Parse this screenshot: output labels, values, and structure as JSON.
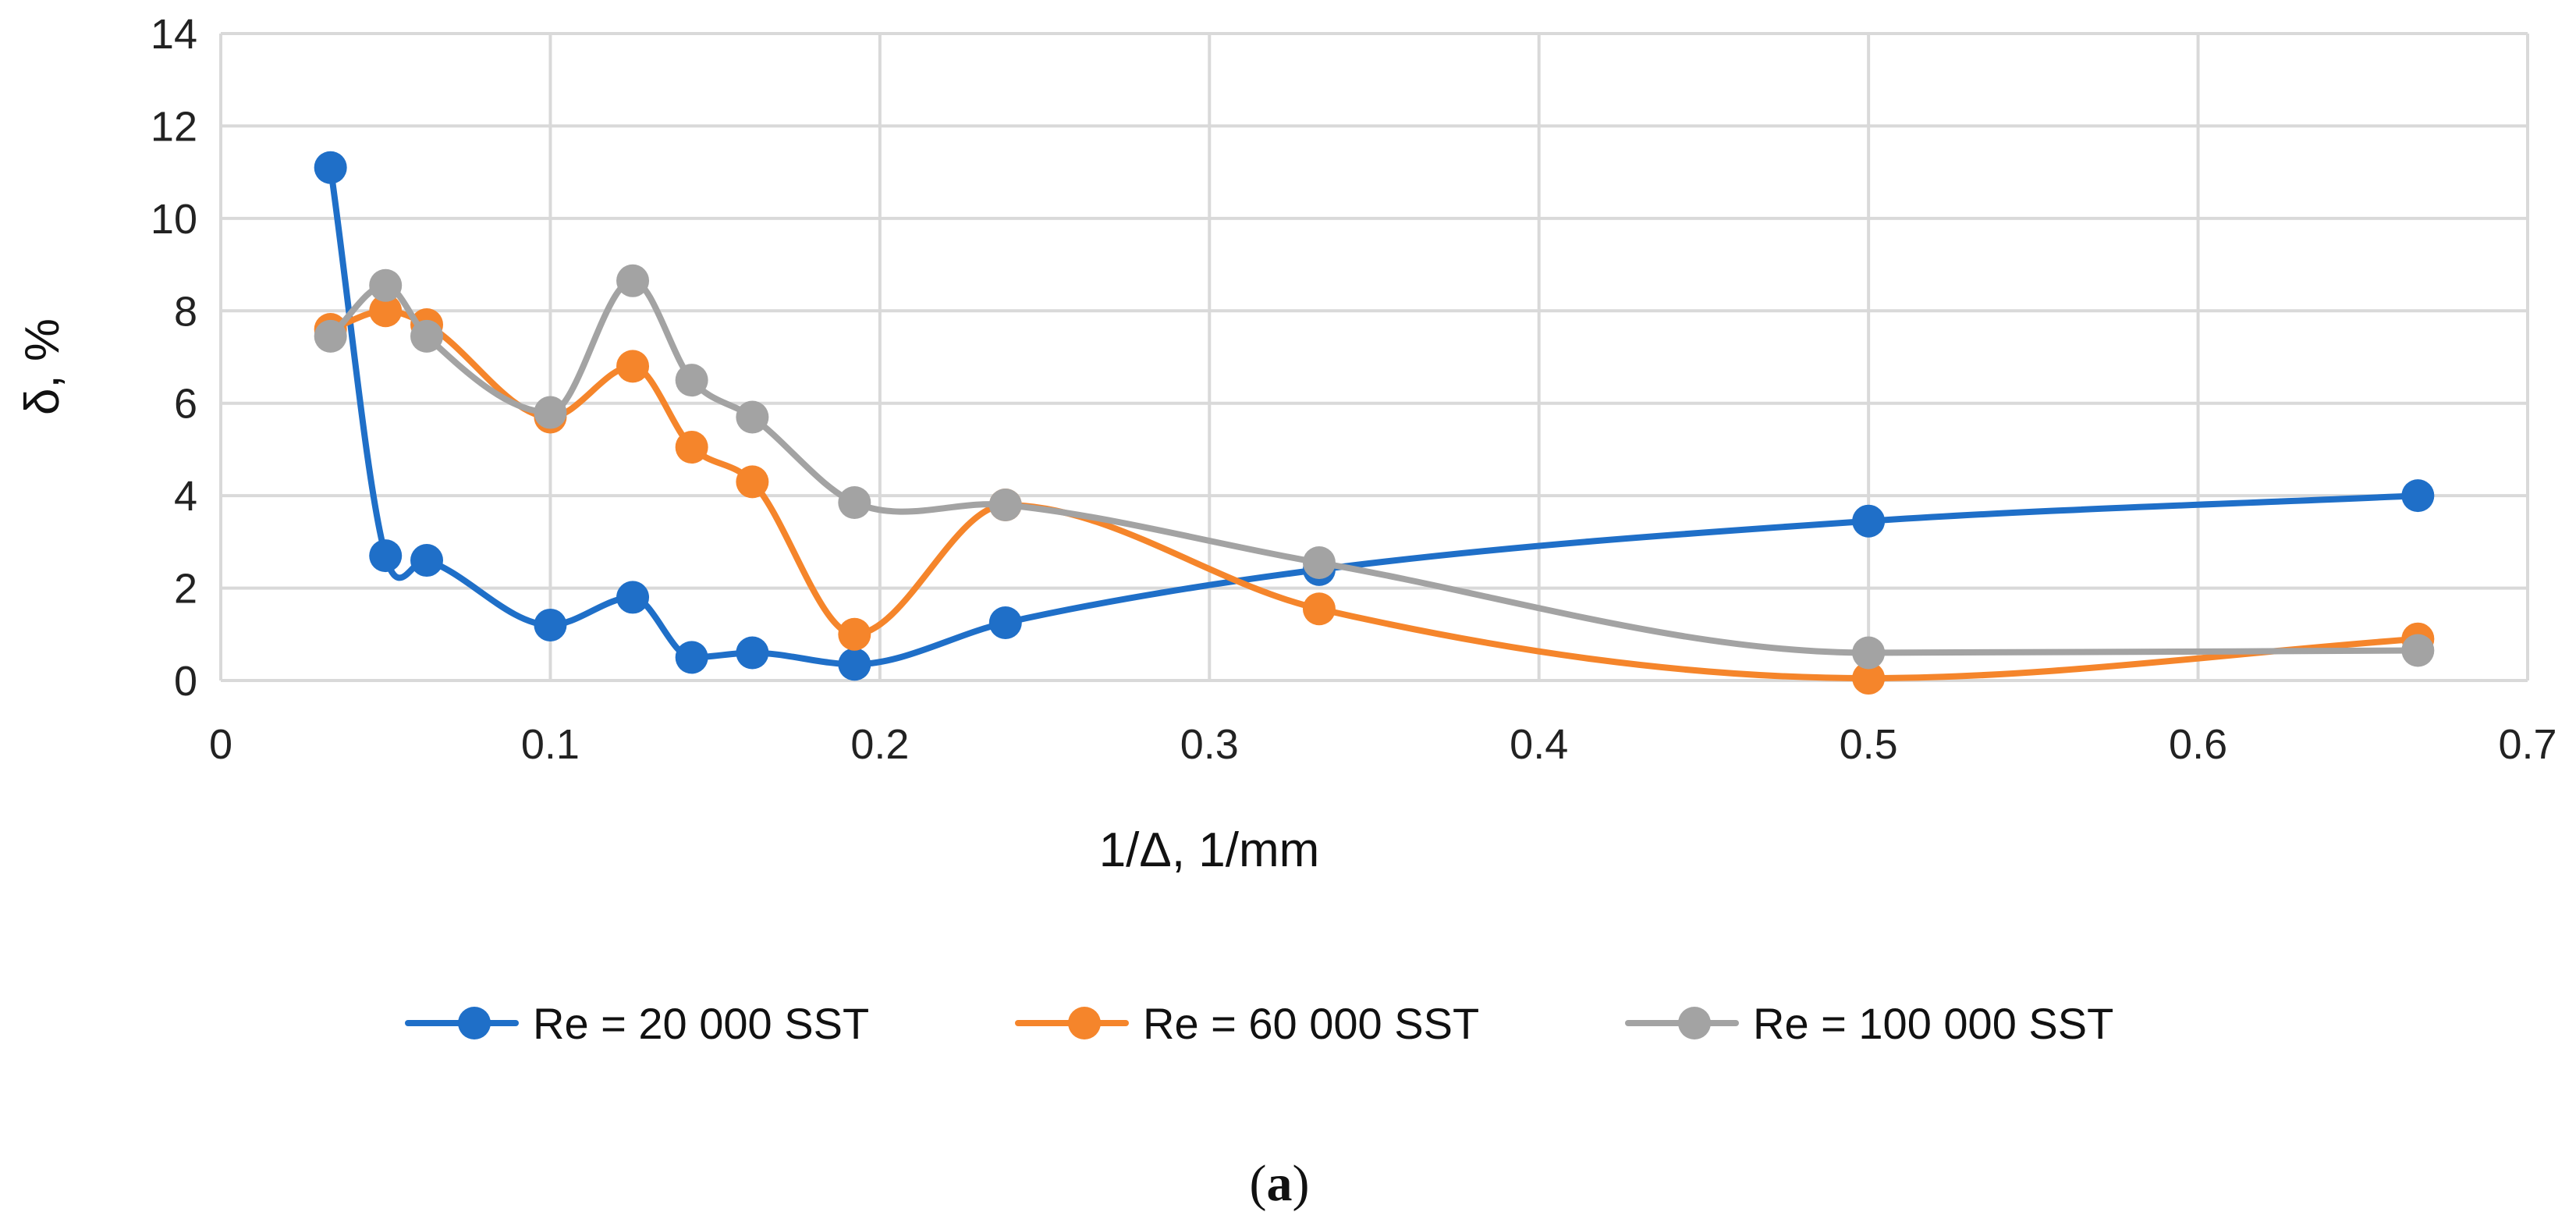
{
  "caption": {
    "open": "(",
    "letter": "a",
    "close": ")"
  },
  "chart_data": {
    "type": "line",
    "title": "",
    "xlabel": "1/Δ, 1/mm",
    "ylabel": "δ, %",
    "xlim": [
      0,
      0.7
    ],
    "ylim": [
      0,
      14
    ],
    "x_ticks": [
      0,
      0.1,
      0.2,
      0.3,
      0.4,
      0.5,
      0.6,
      0.7
    ],
    "x_tick_labels": [
      "0",
      "0.1",
      "0.2",
      "0.3",
      "0.4",
      "0.5",
      "0.6",
      "0.7"
    ],
    "y_ticks": [
      0,
      2,
      4,
      6,
      8,
      10,
      12,
      14
    ],
    "y_tick_labels": [
      "0",
      "2",
      "4",
      "6",
      "8",
      "10",
      "12",
      "14"
    ],
    "grid": true,
    "legend_position": "bottom",
    "x": [
      0.0333,
      0.05,
      0.0625,
      0.1,
      0.125,
      0.1429,
      0.1613,
      0.1923,
      0.2381,
      0.3333,
      0.5,
      0.6667
    ],
    "series": [
      {
        "name": "Re = 20 000 SST",
        "color": "#1f6fc8",
        "values": [
          11.1,
          2.7,
          2.6,
          1.2,
          1.8,
          0.5,
          0.6,
          0.35,
          1.25,
          2.4,
          3.45,
          4.0
        ]
      },
      {
        "name": "Re = 60 000 SST",
        "color": "#f5852b",
        "values": [
          7.6,
          8.0,
          7.7,
          5.7,
          6.8,
          5.05,
          4.3,
          1.0,
          3.8,
          1.55,
          0.05,
          0.9
        ]
      },
      {
        "name": "Re = 100 000 SST",
        "color": "#a3a3a3",
        "values": [
          7.45,
          8.55,
          7.45,
          5.8,
          8.65,
          6.5,
          5.7,
          3.85,
          3.8,
          2.55,
          0.6,
          0.65
        ]
      }
    ]
  },
  "colors": {
    "grid": "#d9d9d9",
    "text": "#222222"
  }
}
